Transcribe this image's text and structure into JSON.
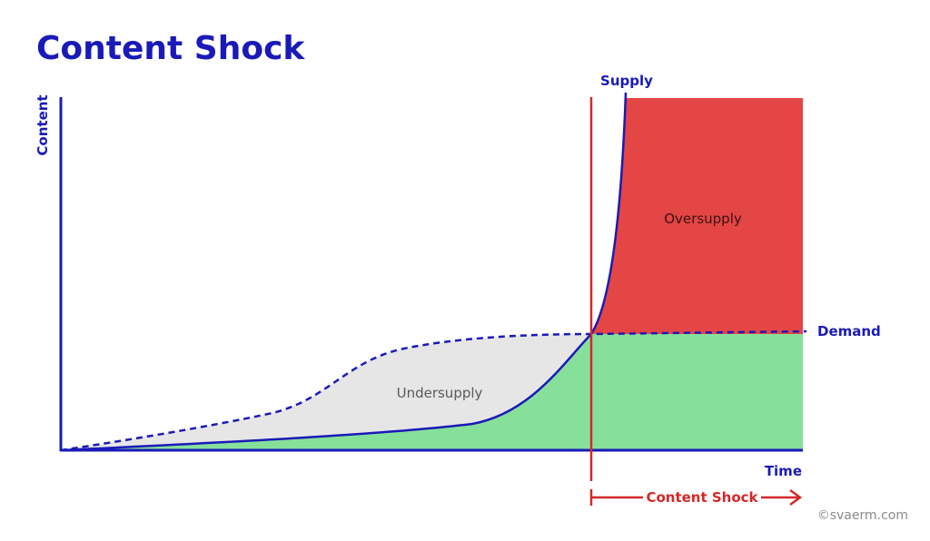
{
  "title": "Content Shock",
  "axes": {
    "y_label": "Content",
    "x_label": "Time"
  },
  "curves": {
    "supply_label": "Supply",
    "demand_label": "Demand"
  },
  "regions": {
    "undersupply_label": "Undersupply",
    "oversupply_label": "Oversupply"
  },
  "shock": {
    "label": "Content Shock"
  },
  "credit": "©svaerm.com",
  "colors": {
    "axis_blue": "#1a1ab8",
    "shock_red": "#d42828",
    "oversupply_fill": "#e44545",
    "supply_fill": "#87e09a",
    "undersupply_fill": "#e6e6e6",
    "title_blue": "#1a1ab8"
  }
}
